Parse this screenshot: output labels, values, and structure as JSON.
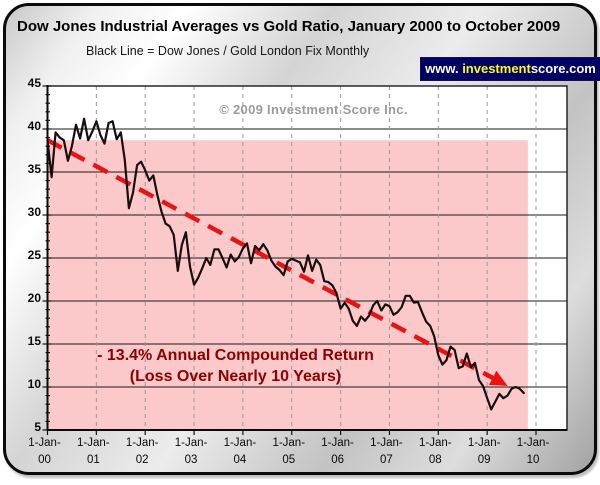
{
  "header": {
    "title": "Dow Jones Industrial Averages vs Gold Ratio, January 2000 to October 2009",
    "subtitle": "Black Line = Dow Jones / Gold London Fix Monthly",
    "banner": {
      "prefix": "www. ",
      "highlight": "investment",
      "suffix": "score.com",
      "bg_color": "#000066",
      "highlight_color": "#ffff00",
      "text_color": "#ffffff"
    }
  },
  "watermark": "© 2009 Investment Score Inc.",
  "annotation": {
    "line1": "- 13.4% Annual Compounded Return",
    "line2": "(Loss Over Nearly 10 Years)",
    "color": "#8f0000"
  },
  "chart_data": {
    "type": "line",
    "title": "Dow Jones Industrial Averages vs Gold Ratio, January 2000 to October 2009",
    "x_start": "2000-01",
    "x_end": "2009-10",
    "frequency": "monthly",
    "ylim": [
      5,
      45
    ],
    "y_ticks": [
      45,
      40,
      35,
      30,
      25,
      20,
      15,
      10,
      5
    ],
    "x_tick_labels": [
      [
        "1-Jan-",
        "00"
      ],
      [
        "1-Jan-",
        "01"
      ],
      [
        "1-Jan-",
        "02"
      ],
      [
        "1-Jan-",
        "03"
      ],
      [
        "1-Jan-",
        "04"
      ],
      [
        "1-Jan-",
        "05"
      ],
      [
        "1-Jan-",
        "06"
      ],
      [
        "1-Jan-",
        "07"
      ],
      [
        "1-Jan-",
        "08"
      ],
      [
        "1-Jan-",
        "09"
      ],
      [
        "1-Jan-",
        "10"
      ]
    ],
    "grid": {
      "horizontal": "solid-black",
      "vertical": "dashed-gray-yearly"
    },
    "series": [
      {
        "name": "Dow Jones / Gold London Fix Monthly",
        "color": "#190d0d",
        "values": [
          38.7,
          34.4,
          39.6,
          39.0,
          38.7,
          36.3,
          38.0,
          40.5,
          38.9,
          41.2,
          38.7,
          39.7,
          40.9,
          39.3,
          38.3,
          40.7,
          40.9,
          38.8,
          39.6,
          36.4,
          30.8,
          32.6,
          35.8,
          36.2,
          35.2,
          34.0,
          34.6,
          32.3,
          30.4,
          29.0,
          28.7,
          27.7,
          23.5,
          26.5,
          28.0,
          24.0,
          21.9,
          22.7,
          23.8,
          25.0,
          24.2,
          26.0,
          26.0,
          25.0,
          23.9,
          25.4,
          24.6,
          25.1,
          26.1,
          26.7,
          24.4,
          26.4,
          25.9,
          26.6,
          25.9,
          24.7,
          24.0,
          23.6,
          23.0,
          24.6,
          24.9,
          24.7,
          24.5,
          23.4,
          25.3,
          23.5,
          24.8,
          24.2,
          22.3,
          22.2,
          21.8,
          20.9,
          19.1,
          19.8,
          19.1,
          17.7,
          17.1,
          18.2,
          17.7,
          18.3,
          19.5,
          20.0,
          18.9,
          19.6,
          19.4,
          18.4,
          18.7,
          19.3,
          20.6,
          20.6,
          19.8,
          19.9,
          18.7,
          17.6,
          17.1,
          15.9,
          13.7,
          12.6,
          13.1,
          14.7,
          14.3,
          12.2,
          12.4,
          13.9,
          12.3,
          12.8,
          10.8,
          10.1,
          8.7,
          7.4,
          8.3,
          9.2,
          8.7,
          9.0,
          9.8,
          10.0,
          9.8,
          9.3
        ]
      }
    ],
    "trend_line": {
      "label": "-13.4% annual compounded return trend",
      "color": "#ee1111",
      "style": "dashed-with-arrow",
      "start": {
        "month_index": 0,
        "value": 38.7
      },
      "end": {
        "month_index": 110,
        "value": 10.9
      }
    },
    "shaded_region": {
      "color": "#fbc9c9",
      "value_top": 38.7,
      "value_bottom": 5,
      "month_start": 0,
      "month_end": 118
    }
  }
}
